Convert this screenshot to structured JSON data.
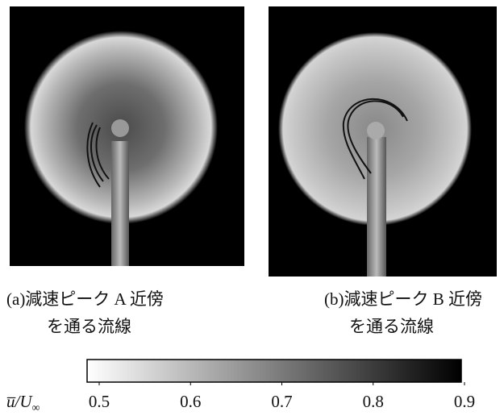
{
  "panels": [
    {
      "caption": [
        "(a)減速ピーク A 近傍",
        "を通る流線"
      ]
    },
    {
      "caption": [
        "(b)減速ピーク B 近傍",
        "を通る流線"
      ]
    }
  ],
  "colorbar": {
    "label": {
      "base": "u̅/U",
      "sub": "∞"
    },
    "ticks": [
      0.5,
      0.6,
      0.7,
      0.8,
      0.9
    ]
  }
}
